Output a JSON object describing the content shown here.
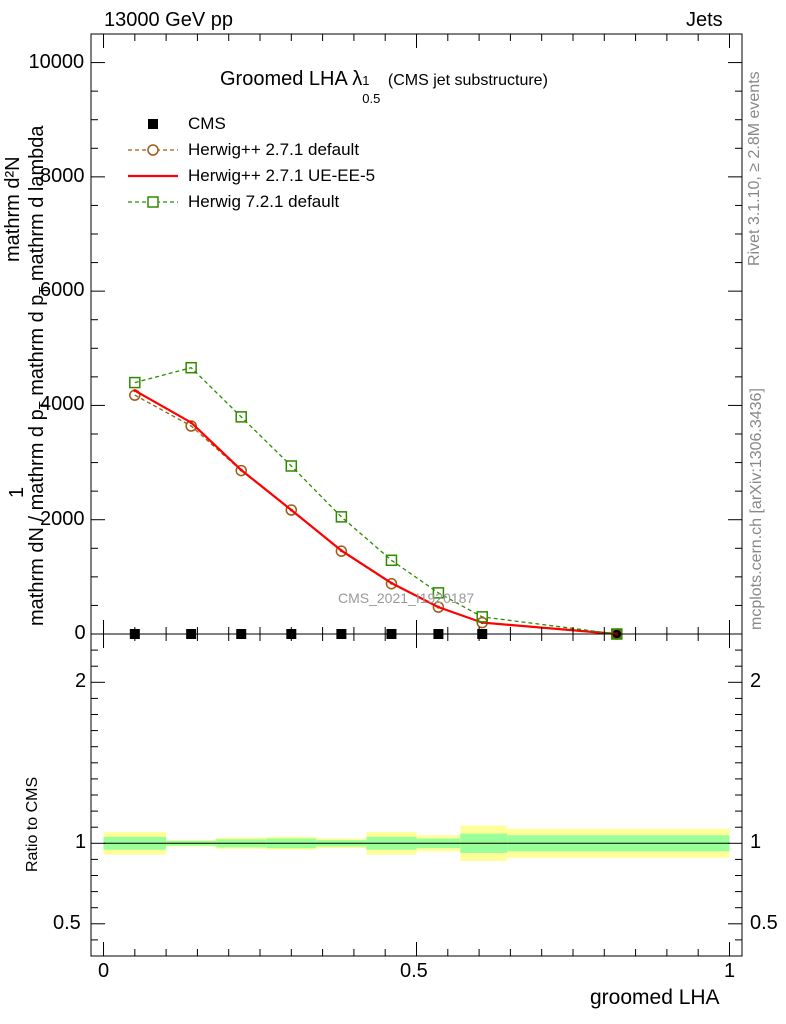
{
  "header": {
    "left": "13000 GeV pp",
    "right": "Jets"
  },
  "side_labels": {
    "rivet": "Rivet 3.1.10, ≥ 2.8M events",
    "mcplots": "mcplots.cern.ch [arXiv:1306.3436]"
  },
  "ylabel_main": {
    "numerator_top": "mathrm d²N",
    "one": "1",
    "denominator": "mathrm dN / mathrm d p",
    "den_sub": "T",
    "rest": " mathrm d p",
    "rest_sub": "T",
    "rest2": " mathrm d lambda"
  },
  "colors": {
    "cms": "#000000",
    "herwig_default": "#a05a14",
    "herwig_ueee5": "#ff0000",
    "herwig721": "#2e8b00",
    "band_inner": "#99ff99",
    "band_outer": "#ffff99"
  },
  "chart_data": [
    {
      "type": "line",
      "title": "Groomed LHA",
      "title_lambda": "λ",
      "title_sup": "1",
      "title_sub": "0.5",
      "title_note": "(CMS jet substructure)",
      "analysis_label": "CMS_2021_I1920187",
      "xlim": [
        -0.02,
        1.02
      ],
      "ylim": [
        0,
        10500
      ],
      "yticks": [
        0,
        2000,
        4000,
        6000,
        8000,
        10000
      ],
      "xticks": [
        0,
        0.5,
        1
      ],
      "x": [
        0.05,
        0.14,
        0.22,
        0.3,
        0.38,
        0.46,
        0.535,
        0.605,
        0.82
      ],
      "legend_position": "top-left",
      "series": [
        {
          "name": "CMS",
          "style": "markers",
          "y": [
            0,
            0,
            0,
            0,
            0,
            0,
            0,
            0,
            0
          ]
        },
        {
          "name": "Herwig++ 2.7.1 default",
          "style": "dashed-circle",
          "y": [
            4180,
            3640,
            2860,
            2170,
            1450,
            880,
            470,
            200,
            0
          ]
        },
        {
          "name": "Herwig++ 2.7.1 UE-EE-5",
          "style": "solid",
          "y": [
            4260,
            3700,
            2870,
            2170,
            1460,
            890,
            470,
            200,
            0
          ]
        },
        {
          "name": "Herwig 7.2.1 default",
          "style": "dashed-square",
          "y": [
            4400,
            4660,
            3800,
            2940,
            2050,
            1290,
            720,
            300,
            0
          ]
        }
      ]
    },
    {
      "type": "area",
      "ylabel": "Ratio to CMS",
      "xlabel": "groomed LHA",
      "xlim": [
        -0.02,
        1.02
      ],
      "ylim": [
        0.3,
        2.3
      ],
      "yticks": [
        0.5,
        1,
        2
      ],
      "xticks": [
        0,
        0.5,
        1
      ],
      "tick_labels_x": [
        "0",
        "0.5",
        "1"
      ],
      "tick_labels_y": [
        "0.5",
        "1",
        "2"
      ],
      "bins": [
        {
          "x0": 0.0,
          "x1": 0.1,
          "inner": [
            0.96,
            1.04
          ],
          "outer": [
            0.93,
            1.07
          ]
        },
        {
          "x0": 0.1,
          "x1": 0.18,
          "inner": [
            0.985,
            1.015
          ],
          "outer": [
            0.98,
            1.02
          ]
        },
        {
          "x0": 0.18,
          "x1": 0.26,
          "inner": [
            0.975,
            1.025
          ],
          "outer": [
            0.965,
            1.035
          ]
        },
        {
          "x0": 0.26,
          "x1": 0.34,
          "inner": [
            0.97,
            1.03
          ],
          "outer": [
            0.96,
            1.04
          ]
        },
        {
          "x0": 0.34,
          "x1": 0.42,
          "inner": [
            0.98,
            1.02
          ],
          "outer": [
            0.97,
            1.03
          ]
        },
        {
          "x0": 0.42,
          "x1": 0.5,
          "inner": [
            0.96,
            1.04
          ],
          "outer": [
            0.93,
            1.07
          ]
        },
        {
          "x0": 0.5,
          "x1": 0.57,
          "inner": [
            0.97,
            1.03
          ],
          "outer": [
            0.95,
            1.05
          ]
        },
        {
          "x0": 0.57,
          "x1": 0.645,
          "inner": [
            0.94,
            1.06
          ],
          "outer": [
            0.89,
            1.11
          ]
        },
        {
          "x0": 0.645,
          "x1": 1.0,
          "inner": [
            0.95,
            1.05
          ],
          "outer": [
            0.91,
            1.09
          ]
        }
      ]
    }
  ]
}
